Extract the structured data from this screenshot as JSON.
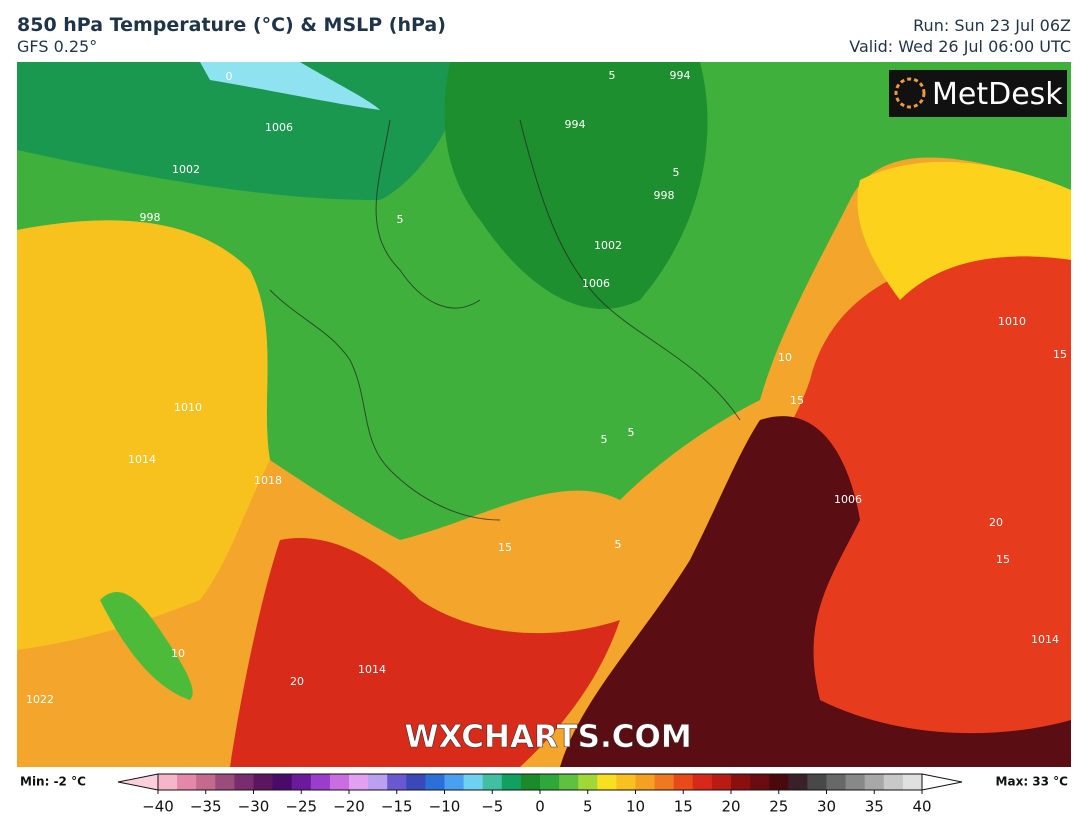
{
  "header": {
    "title": "850 hPa Temperature (°C) & MSLP (hPa)",
    "subtitle": "GFS 0.25°",
    "run": "Run: Sun 23 Jul 06Z",
    "valid": "Valid: Wed 26 Jul 06:00 UTC"
  },
  "logo": "MetDesk",
  "watermark": "WXCHARTS.COM",
  "colorbar": {
    "min_label": "Min: -2 °C",
    "max_label": "Max: 33 °C",
    "ticks": [
      "−40",
      "−35",
      "−30",
      "−25",
      "−20",
      "−15",
      "−10",
      "−5",
      "0",
      "5",
      "10",
      "15",
      "20",
      "25",
      "30",
      "35",
      "40"
    ]
  },
  "contour_labels": [
    "0",
    "1006",
    "1002",
    "998",
    "994",
    "994",
    "5",
    "5",
    "5",
    "998",
    "1002",
    "1006",
    "1010",
    "15",
    "10",
    "15",
    "1010",
    "1014",
    "1018",
    "5",
    "5",
    "1006",
    "20",
    "15",
    "15",
    "5",
    "10",
    "1014",
    "20",
    "1022",
    "1014"
  ]
}
